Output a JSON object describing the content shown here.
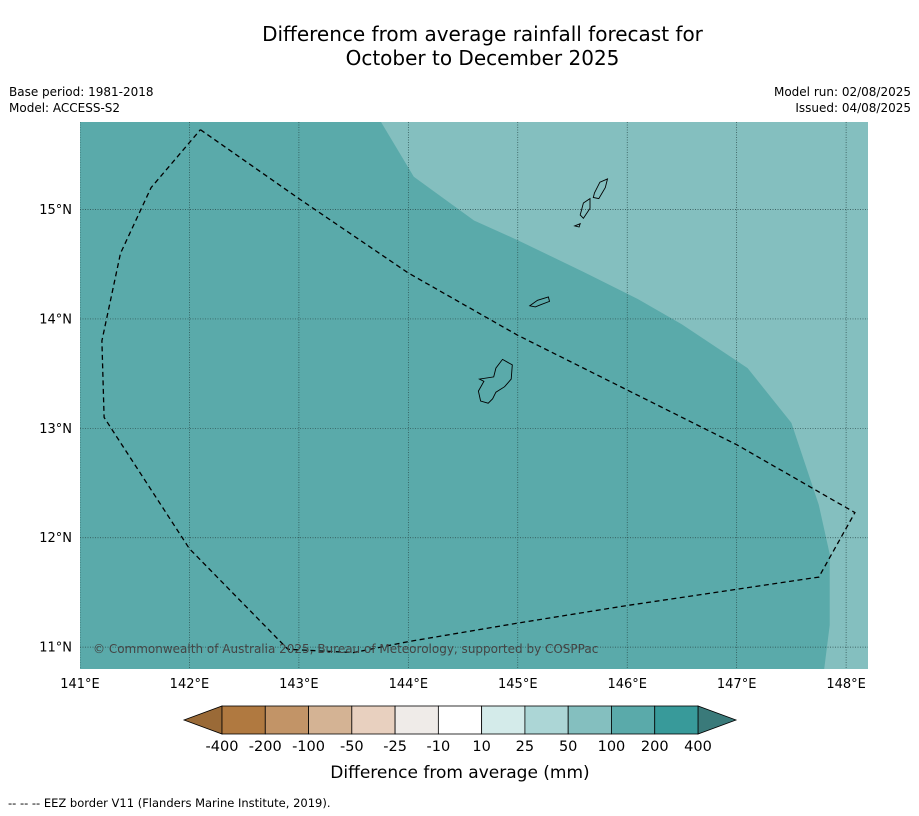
{
  "title": {
    "line1": "Difference from average rainfall forecast for",
    "line2": "October to December 2025"
  },
  "meta": {
    "base_period": "Base period: 1981-2018",
    "model": "Model: ACCESS-S2",
    "model_run": "Model run: 02/08/2025",
    "issued": "Issued: 04/08/2025"
  },
  "map": {
    "lon_range": [
      141.0,
      148.2
    ],
    "lat_range": [
      10.8,
      15.8
    ],
    "lon_ticks": [
      {
        "value": 141,
        "label": "141°E"
      },
      {
        "value": 142,
        "label": "142°E"
      },
      {
        "value": 143,
        "label": "143°E"
      },
      {
        "value": 144,
        "label": "144°E"
      },
      {
        "value": 145,
        "label": "145°E"
      },
      {
        "value": 146,
        "label": "146°E"
      },
      {
        "value": 147,
        "label": "147°E"
      },
      {
        "value": 148,
        "label": "148°E"
      }
    ],
    "lat_ticks": [
      {
        "value": 15,
        "label": "15°N"
      },
      {
        "value": 14,
        "label": "14°N"
      },
      {
        "value": 13,
        "label": "13°N"
      },
      {
        "value": 12,
        "label": "12°N"
      },
      {
        "value": 11,
        "label": "11°N"
      }
    ],
    "grid": true,
    "base_category_color": "#5aaaaa",
    "zone_100_200": {
      "color": "#5aaaaa",
      "eastern_boundary": [
        [
          143.75,
          15.8
        ],
        [
          144.05,
          15.3
        ],
        [
          144.6,
          14.9
        ],
        [
          145.0,
          14.72
        ],
        [
          145.6,
          14.43
        ],
        [
          146.1,
          14.18
        ],
        [
          146.5,
          13.95
        ],
        [
          147.1,
          13.55
        ],
        [
          147.5,
          13.05
        ],
        [
          147.75,
          12.3
        ],
        [
          147.85,
          11.85
        ],
        [
          147.85,
          11.2
        ],
        [
          147.8,
          10.8
        ]
      ]
    },
    "zone_50_100": {
      "color": "#84bfbf"
    },
    "eez_border": [
      [
        142.1,
        15.73
      ],
      [
        143.0,
        15.1
      ],
      [
        144.0,
        14.42
      ],
      [
        145.0,
        13.85
      ],
      [
        146.0,
        13.35
      ],
      [
        147.0,
        12.85
      ],
      [
        148.08,
        12.23
      ],
      [
        147.75,
        11.64
      ],
      [
        146.0,
        11.38
      ],
      [
        145.0,
        11.22
      ],
      [
        144.0,
        11.05
      ],
      [
        143.5,
        10.95
      ],
      [
        142.9,
        10.98
      ],
      [
        142.0,
        11.9
      ],
      [
        141.22,
        13.1
      ],
      [
        141.2,
        13.8
      ],
      [
        141.37,
        14.6
      ],
      [
        141.65,
        15.2
      ],
      [
        142.1,
        15.73
      ]
    ],
    "islands": [
      {
        "name": "Guam",
        "outline": [
          [
            144.86,
            13.63
          ],
          [
            144.95,
            13.58
          ],
          [
            144.94,
            13.45
          ],
          [
            144.88,
            13.38
          ],
          [
            144.8,
            13.33
          ],
          [
            144.77,
            13.27
          ],
          [
            144.73,
            13.23
          ],
          [
            144.66,
            13.25
          ],
          [
            144.64,
            13.34
          ],
          [
            144.69,
            13.43
          ],
          [
            144.65,
            13.45
          ],
          [
            144.78,
            13.47
          ],
          [
            144.8,
            13.55
          ]
        ]
      },
      {
        "name": "Rota",
        "outline": [
          [
            145.11,
            14.12
          ],
          [
            145.18,
            14.17
          ],
          [
            145.28,
            14.2
          ],
          [
            145.29,
            14.16
          ],
          [
            145.21,
            14.13
          ],
          [
            145.16,
            14.11
          ]
        ]
      },
      {
        "name": "Tinian",
        "outline": [
          [
            145.6,
            15.06
          ],
          [
            145.66,
            15.1
          ],
          [
            145.66,
            15.01
          ],
          [
            145.6,
            14.92
          ],
          [
            145.57,
            14.95
          ]
        ]
      },
      {
        "name": "Saipan",
        "outline": [
          [
            145.7,
            15.15
          ],
          [
            145.75,
            15.25
          ],
          [
            145.82,
            15.28
          ],
          [
            145.8,
            15.2
          ],
          [
            145.74,
            15.1
          ],
          [
            145.69,
            15.11
          ]
        ]
      },
      {
        "name": "Aguijan",
        "outline": [
          [
            145.52,
            14.85
          ],
          [
            145.57,
            14.87
          ],
          [
            145.56,
            14.84
          ]
        ]
      }
    ],
    "copyright": "© Commonwealth of Australia 2025, Bureau of Meteorology, supported by COSPPac"
  },
  "colorbar": {
    "title": "Difference from average (mm)",
    "low_extension_color": "#9a6a37",
    "high_extension_color": "#3a7a7a",
    "colors": [
      "#b07940",
      "#c29467",
      "#d4b394",
      "#e8d0bf",
      "#efebe8",
      "#ffffff",
      "#d4ebea",
      "#acd6d6",
      "#84bfbf",
      "#5aaaaa",
      "#389a9a"
    ],
    "labels": [
      "-400",
      "-200",
      "-100",
      "-50",
      "-25",
      "-10",
      "10",
      "25",
      "50",
      "100",
      "200",
      "400"
    ]
  },
  "footer": {
    "legend": "--  --  -- EEZ border V11 (Flanders Marine Institute, 2019)."
  }
}
